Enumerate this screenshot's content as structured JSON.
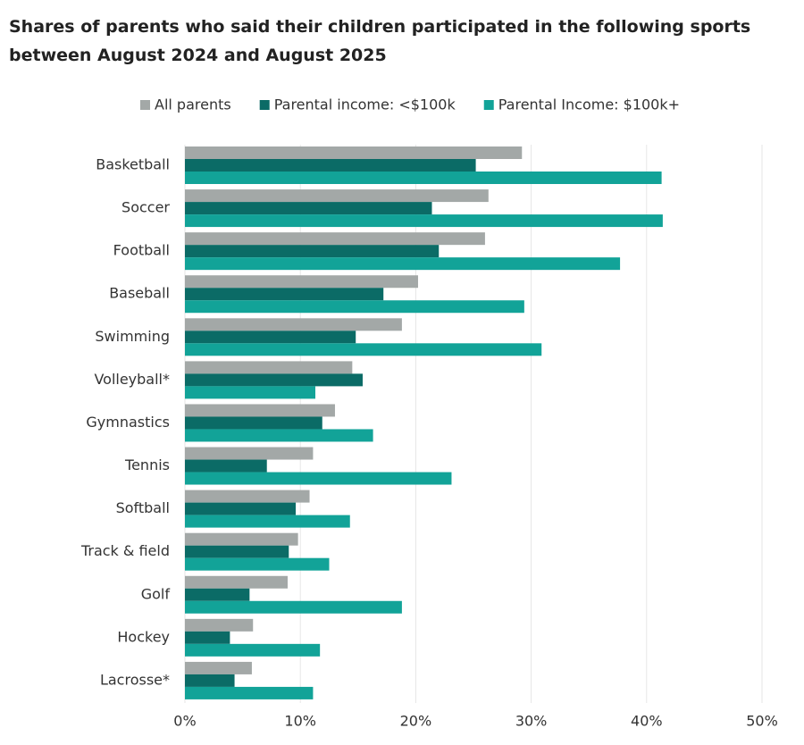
{
  "chart_data": {
    "type": "bar",
    "orientation": "horizontal",
    "title": "Shares of parents who said their children participated in the following sports between August 2024 and August 2025",
    "categories": [
      "Basketball",
      "Soccer",
      "Football",
      "Baseball",
      "Swimming",
      "Volleyball*",
      "Gymnastics",
      "Tennis",
      "Softball",
      "Track & field",
      "Golf",
      "Hockey",
      "Lacrosse*"
    ],
    "series": [
      {
        "name": "All parents",
        "color": "#a3a8a7",
        "values": [
          29.2,
          26.3,
          26.0,
          20.2,
          18.8,
          14.5,
          13.0,
          11.1,
          10.8,
          9.8,
          8.9,
          5.9,
          5.8
        ]
      },
      {
        "name": "Parental income: <$100k",
        "color": "#0b6b66",
        "values": [
          25.2,
          21.4,
          22.0,
          17.2,
          14.8,
          15.4,
          11.9,
          7.1,
          9.6,
          9.0,
          5.6,
          3.9,
          4.3
        ]
      },
      {
        "name": "Parental Income: $100k+",
        "color": "#12a398",
        "values": [
          41.3,
          41.4,
          37.7,
          29.4,
          30.9,
          11.3,
          16.3,
          23.1,
          14.3,
          12.5,
          18.8,
          11.7,
          11.1
        ]
      }
    ],
    "xlim": [
      0,
      50
    ],
    "xticks": [
      {
        "value": 0,
        "label": "0%"
      },
      {
        "value": 10,
        "label": "10%"
      },
      {
        "value": 20,
        "label": "20%"
      },
      {
        "value": 30,
        "label": "30%"
      },
      {
        "value": 40,
        "label": "40%"
      },
      {
        "value": 50,
        "label": "50%"
      }
    ],
    "grid": true,
    "legend": "top"
  }
}
